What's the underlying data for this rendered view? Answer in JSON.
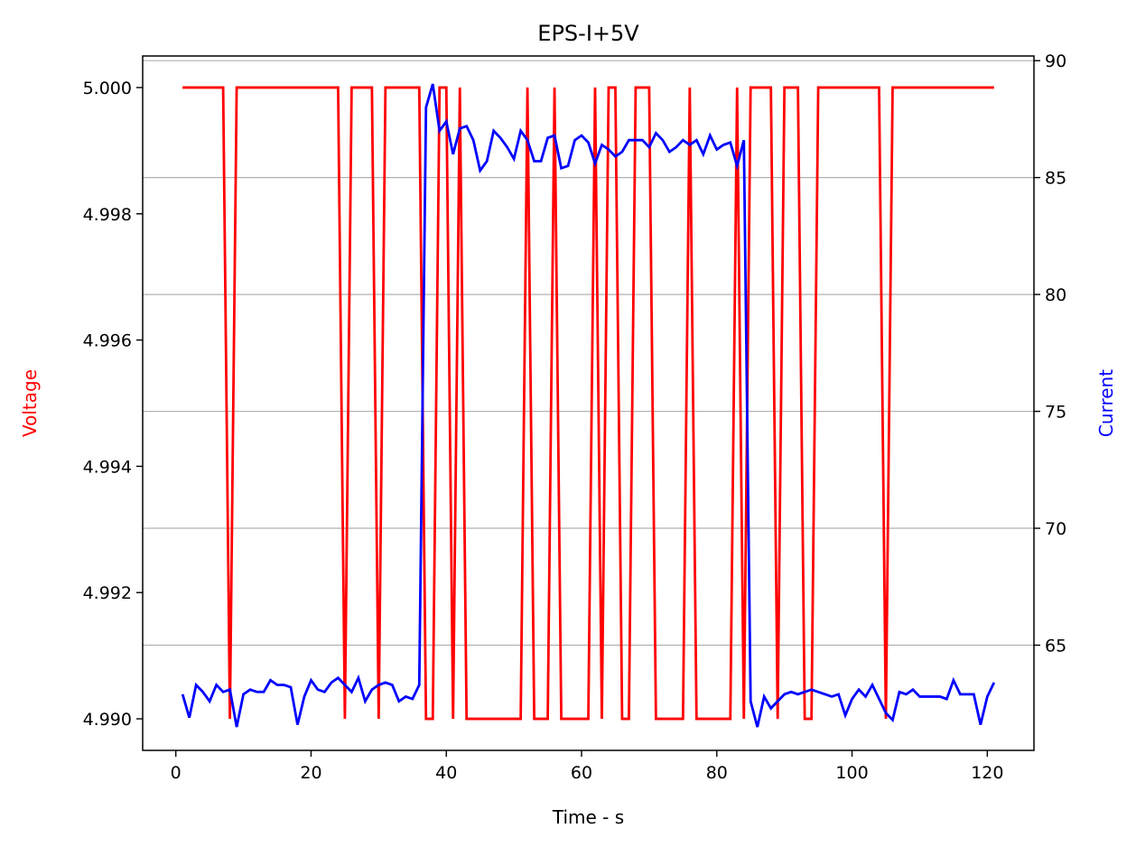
{
  "chart_data": {
    "type": "line",
    "title": "EPS-I+5V",
    "xlabel": "Time - s",
    "ylabel_left": "Voltage",
    "ylabel_right": "Current",
    "xlim": [
      -4.9,
      126.9
    ],
    "ylim_left": [
      4.9895,
      5.0005
    ],
    "ylim_right": [
      60.5,
      90.2
    ],
    "x_ticks": [
      0,
      20,
      40,
      60,
      80,
      100,
      120
    ],
    "y_left_ticks": [
      4.99,
      4.992,
      4.994,
      4.996,
      4.998,
      5.0
    ],
    "y_left_tick_labels": [
      "4.990",
      "4.992",
      "4.994",
      "4.996",
      "4.998",
      "5.000"
    ],
    "y_right_ticks": [
      65,
      70,
      75,
      80,
      85,
      90
    ],
    "grid": "horizontal (right axis)",
    "colors": {
      "voltage": "#ff0000",
      "current": "#0000ff",
      "grid": "#b0b0b0"
    },
    "x": [
      1,
      2,
      3,
      4,
      5,
      6,
      7,
      8,
      9,
      10,
      11,
      12,
      13,
      14,
      15,
      16,
      17,
      18,
      19,
      20,
      21,
      22,
      23,
      24,
      25,
      26,
      27,
      28,
      29,
      30,
      31,
      32,
      33,
      34,
      35,
      36,
      37,
      38,
      39,
      40,
      41,
      42,
      43,
      44,
      45,
      46,
      47,
      48,
      49,
      50,
      51,
      52,
      53,
      54,
      55,
      56,
      57,
      58,
      59,
      60,
      61,
      62,
      63,
      64,
      65,
      66,
      67,
      68,
      69,
      70,
      71,
      72,
      73,
      74,
      75,
      76,
      77,
      78,
      79,
      80,
      81,
      82,
      83,
      84,
      85,
      86,
      87,
      88,
      89,
      90,
      91,
      92,
      93,
      94,
      95,
      96,
      97,
      98,
      99,
      100,
      101,
      102,
      103,
      104,
      105,
      106,
      107,
      108,
      109,
      110,
      111,
      112,
      113,
      114,
      115,
      116,
      117,
      118,
      119,
      120,
      121
    ],
    "series": [
      {
        "name": "Voltage",
        "axis": "left",
        "values": [
          5.0,
          5.0,
          5.0,
          5.0,
          5.0,
          5.0,
          5.0,
          4.99,
          5.0,
          5.0,
          5.0,
          5.0,
          5.0,
          5.0,
          5.0,
          5.0,
          5.0,
          5.0,
          5.0,
          5.0,
          5.0,
          5.0,
          5.0,
          5.0,
          4.99,
          5.0,
          5.0,
          5.0,
          5.0,
          4.99,
          5.0,
          5.0,
          5.0,
          5.0,
          5.0,
          5.0,
          4.99,
          4.99,
          5.0,
          5.0,
          4.99,
          5.0,
          4.99,
          4.99,
          4.99,
          4.99,
          4.99,
          4.99,
          4.99,
          4.99,
          4.99,
          5.0,
          4.99,
          4.99,
          4.99,
          5.0,
          4.99,
          4.99,
          4.99,
          4.99,
          4.99,
          5.0,
          4.99,
          5.0,
          5.0,
          4.99,
          4.99,
          5.0,
          5.0,
          5.0,
          4.99,
          4.99,
          4.99,
          4.99,
          4.99,
          5.0,
          4.99,
          4.99,
          4.99,
          4.99,
          4.99,
          4.99,
          5.0,
          4.99,
          5.0,
          5.0,
          5.0,
          5.0,
          4.99,
          5.0,
          5.0,
          5.0,
          4.99,
          4.99,
          5.0,
          5.0,
          5.0,
          5.0,
          5.0,
          5.0,
          5.0,
          5.0,
          5.0,
          5.0,
          4.99,
          5.0,
          5.0,
          5.0,
          5.0,
          5.0,
          5.0,
          5.0,
          5.0,
          5.0,
          5.0,
          5.0,
          5.0,
          5.0,
          5.0,
          5.0,
          5.0
        ]
      },
      {
        "name": "Current",
        "axis": "right",
        "values": [
          62.9,
          61.9,
          63.3,
          63.0,
          62.6,
          63.3,
          63.0,
          63.1,
          61.5,
          62.9,
          63.1,
          63.0,
          63.0,
          63.5,
          63.3,
          63.3,
          63.2,
          61.6,
          62.8,
          63.5,
          63.1,
          63.0,
          63.4,
          63.6,
          63.3,
          63.0,
          63.6,
          62.6,
          63.1,
          63.3,
          63.4,
          63.3,
          62.6,
          62.8,
          62.7,
          63.3,
          88.0,
          89.0,
          87.0,
          87.4,
          86.0,
          87.1,
          87.2,
          86.6,
          85.3,
          85.7,
          87.0,
          86.7,
          86.3,
          85.8,
          87.0,
          86.6,
          85.7,
          85.7,
          86.7,
          86.8,
          85.4,
          85.5,
          86.6,
          86.8,
          86.5,
          85.6,
          86.4,
          86.2,
          85.9,
          86.1,
          86.6,
          86.6,
          86.6,
          86.3,
          86.9,
          86.6,
          86.1,
          86.3,
          86.6,
          86.4,
          86.6,
          86.0,
          86.8,
          86.2,
          86.4,
          86.5,
          85.5,
          86.6,
          62.6,
          61.5,
          62.8,
          62.3,
          62.6,
          62.9,
          63.0,
          62.9,
          63.0,
          63.1,
          63.0,
          62.9,
          62.8,
          62.9,
          62.0,
          62.7,
          63.1,
          62.8,
          63.3,
          62.7,
          62.1,
          61.8,
          63.0,
          62.9,
          63.1,
          62.8,
          62.8,
          62.8,
          62.8,
          62.7,
          63.5,
          62.9,
          62.9,
          62.9,
          61.6,
          62.8,
          63.4
        ]
      }
    ]
  }
}
